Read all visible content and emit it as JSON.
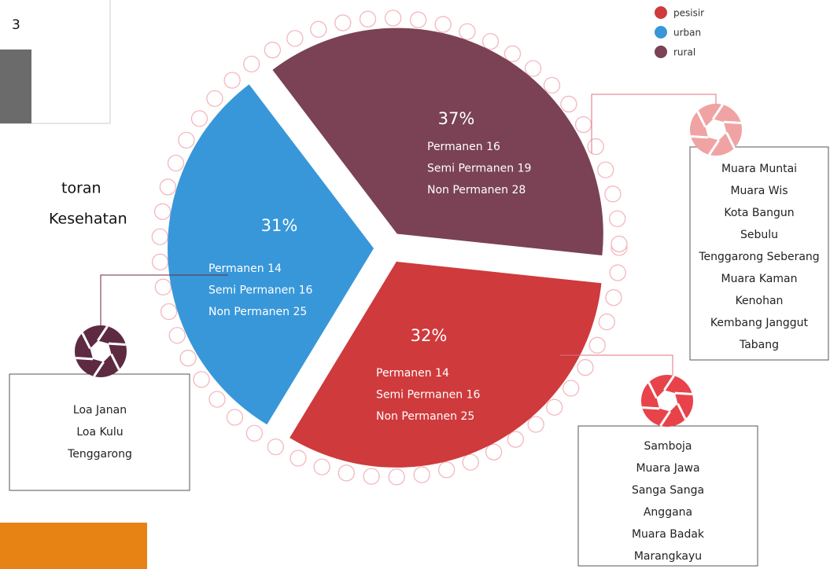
{
  "chart_data": {
    "type": "pie",
    "legend": "top-right",
    "categories": [
      "pesisir",
      "urban",
      "rural"
    ],
    "values": [
      32,
      31,
      37
    ],
    "value_labels": [
      "32%",
      "31%",
      "37%"
    ],
    "colors": [
      "#cf3a3c",
      "#3897d9",
      "#7a4254"
    ],
    "icon_colors": [
      "#e8434a",
      "#5e2a42",
      "#f0a3a3"
    ],
    "details": [
      [
        "Permanen 14",
        "Semi Permanen 16",
        "Non Permanen 25"
      ],
      [
        "Permanen 14",
        "Semi Permanen 16",
        "Non Permanen 25"
      ],
      [
        "Permanen 16",
        "Semi Permanen 19",
        "Non Permanen 28"
      ]
    ],
    "places": [
      [
        "Samboja",
        "Muara Jawa",
        "Sanga Sanga",
        "Anggana",
        "Muara Badak",
        "Marangkayu"
      ],
      [
        "Loa Janan",
        "Loa Kulu",
        "Tenggarong"
      ],
      [
        "Muara Muntai",
        "Muara Wis",
        "Kota Bangun",
        "Sebulu",
        "Tenggarong Seberang",
        "Muara Kaman",
        "Kenohan",
        "Kembang Janggut",
        "Tabang"
      ]
    ]
  },
  "side": {
    "box_number": "3",
    "lines": [
      "toran",
      "Kesehatan"
    ]
  }
}
